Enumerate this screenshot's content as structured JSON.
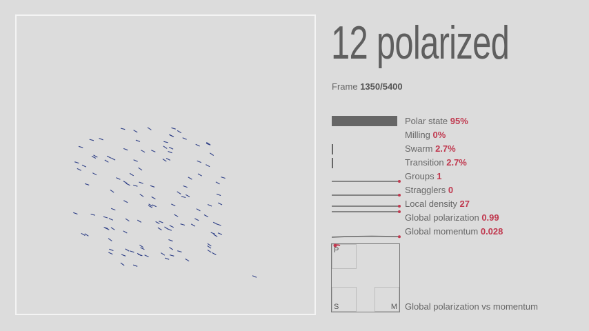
{
  "title": "12 polarized",
  "frame": {
    "label": "Frame",
    "value": "1350/5400"
  },
  "metrics": [
    {
      "label": "Polar state",
      "value": "95%",
      "fraction": 0.95,
      "kind": "bar"
    },
    {
      "label": "Milling",
      "value": "0%",
      "fraction": 0.0,
      "kind": "bar"
    },
    {
      "label": "Swarm",
      "value": "2.7%",
      "fraction": 0.027,
      "kind": "bar"
    },
    {
      "label": "Transition",
      "value": "2.7%",
      "fraction": 0.027,
      "kind": "bar"
    },
    {
      "label": "Groups",
      "value": "1",
      "kind": "spark"
    },
    {
      "label": "Stragglers",
      "value": "0",
      "kind": "spark"
    },
    {
      "label": "Local density",
      "value": "27",
      "kind": "spark"
    },
    {
      "label": "Global polarization",
      "value": "0.99",
      "kind": "spark"
    },
    {
      "label": "Global momentum",
      "value": "0.028",
      "kind": "spark"
    }
  ],
  "phase_plot": {
    "caption": "Global polarization vs momentum",
    "corner_labels": {
      "top_left": "P",
      "bottom_left": "S",
      "bottom_right": "M"
    }
  },
  "colors": {
    "background": "#dcdcdc",
    "agent": "#2e3f86",
    "accent": "#c0394f",
    "bar": "#666666",
    "sim_border": "#f4f4f4"
  },
  "agents": {
    "count": 120,
    "heading_deg": 205
  }
}
